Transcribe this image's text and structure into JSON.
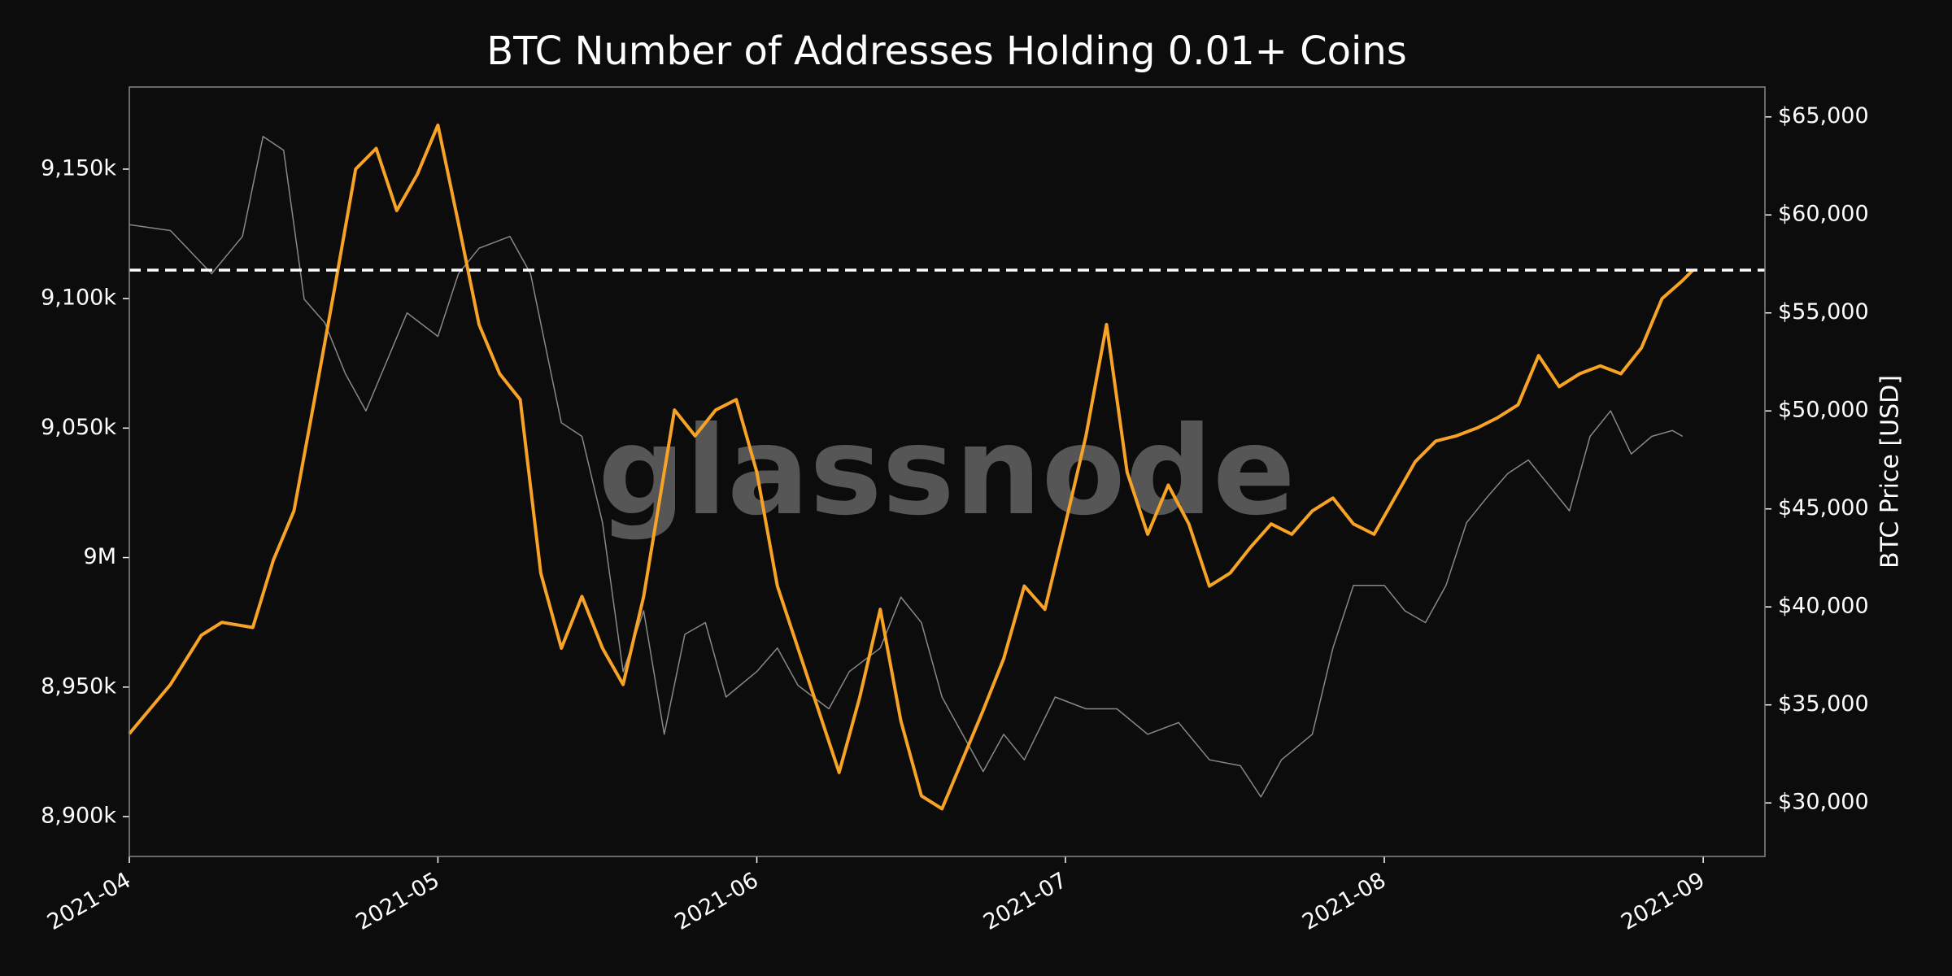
{
  "chart_data": {
    "type": "line",
    "title": "BTC Number of Addresses Holding 0.01+ Coins",
    "y2label": "BTC Price [USD]",
    "watermark": "glassnode",
    "xlim": [
      "2021-04-01",
      "2021-09-07"
    ],
    "xticks": [
      {
        "value": "2021-04-01",
        "label": "2021-04"
      },
      {
        "value": "2021-05-01",
        "label": "2021-05"
      },
      {
        "value": "2021-06-01",
        "label": "2021-06"
      },
      {
        "value": "2021-07-01",
        "label": "2021-07"
      },
      {
        "value": "2021-08-01",
        "label": "2021-08"
      },
      {
        "value": "2021-09-01",
        "label": "2021-09"
      }
    ],
    "ylim": [
      8884600,
      9181700
    ],
    "yticks": [
      {
        "value": 8900000,
        "label": "8,900k"
      },
      {
        "value": 8950000,
        "label": "8,950k"
      },
      {
        "value": 9000000,
        "label": "9M"
      },
      {
        "value": 9050000,
        "label": "9,050k"
      },
      {
        "value": 9100000,
        "label": "9,100k"
      },
      {
        "value": 9150000,
        "label": "9,150k"
      }
    ],
    "y2lim": [
      27268,
      66525
    ],
    "y2ticks": [
      {
        "value": 30000,
        "label": "$30,000"
      },
      {
        "value": 35000,
        "label": "$35,000"
      },
      {
        "value": 40000,
        "label": "$40,000"
      },
      {
        "value": 45000,
        "label": "$45,000"
      },
      {
        "value": 50000,
        "label": "$50,000"
      },
      {
        "value": 55000,
        "label": "$55,000"
      },
      {
        "value": 60000,
        "label": "$60,000"
      },
      {
        "value": 65000,
        "label": "$65,000"
      }
    ],
    "hline": {
      "value": 9111000,
      "color": "#ffffff"
    },
    "series": [
      {
        "color": "#888888",
        "axis": "y2",
        "x": [
          "2021-04-01",
          "2021-04-05",
          "2021-04-09",
          "2021-04-12",
          "2021-04-14",
          "2021-04-16",
          "2021-04-18",
          "2021-04-20",
          "2021-04-22",
          "2021-04-24",
          "2021-04-26",
          "2021-04-28",
          "2021-05-01",
          "2021-05-03",
          "2021-05-05",
          "2021-05-08",
          "2021-05-10",
          "2021-05-12",
          "2021-05-13",
          "2021-05-15",
          "2021-05-17",
          "2021-05-19",
          "2021-05-21",
          "2021-05-23",
          "2021-05-25",
          "2021-05-27",
          "2021-05-29",
          "2021-06-01",
          "2021-06-03",
          "2021-06-05",
          "2021-06-08",
          "2021-06-10",
          "2021-06-13",
          "2021-06-15",
          "2021-06-17",
          "2021-06-19",
          "2021-06-21",
          "2021-06-23",
          "2021-06-25",
          "2021-06-27",
          "2021-06-30",
          "2021-07-03",
          "2021-07-06",
          "2021-07-09",
          "2021-07-12",
          "2021-07-15",
          "2021-07-18",
          "2021-07-20",
          "2021-07-22",
          "2021-07-25",
          "2021-07-27",
          "2021-07-29",
          "2021-08-01",
          "2021-08-03",
          "2021-08-05",
          "2021-08-07",
          "2021-08-09",
          "2021-08-11",
          "2021-08-13",
          "2021-08-15",
          "2021-08-17",
          "2021-08-19",
          "2021-08-21",
          "2021-08-23",
          "2021-08-25",
          "2021-08-27",
          "2021-08-29",
          "2021-08-30"
        ],
        "values": [
          59500,
          59200,
          57000,
          58900,
          64000,
          63300,
          55700,
          54500,
          51900,
          50000,
          52500,
          55000,
          53800,
          57000,
          58300,
          58900,
          57000,
          51900,
          49400,
          48700,
          44300,
          36700,
          39800,
          33500,
          38600,
          39200,
          35400,
          36700,
          37900,
          36000,
          34800,
          36700,
          37900,
          40500,
          39200,
          35400,
          33500,
          31600,
          33500,
          32200,
          35400,
          34800,
          34800,
          33500,
          34100,
          32200,
          31900,
          30300,
          32200,
          33500,
          37900,
          41100,
          41100,
          39800,
          39200,
          41100,
          44300,
          45600,
          46800,
          47500,
          46200,
          44900,
          48700,
          50000,
          47800,
          48700,
          49000,
          48700
        ]
      },
      {
        "color": "#f7a325",
        "axis": "y",
        "x": [
          "2021-04-01",
          "2021-04-05",
          "2021-04-08",
          "2021-04-10",
          "2021-04-13",
          "2021-04-15",
          "2021-04-17",
          "2021-04-19",
          "2021-04-21",
          "2021-04-23",
          "2021-04-25",
          "2021-04-27",
          "2021-04-29",
          "2021-05-01",
          "2021-05-03",
          "2021-05-05",
          "2021-05-07",
          "2021-05-09",
          "2021-05-11",
          "2021-05-13",
          "2021-05-15",
          "2021-05-17",
          "2021-05-19",
          "2021-05-21",
          "2021-05-24",
          "2021-05-26",
          "2021-05-28",
          "2021-05-30",
          "2021-06-01",
          "2021-06-03",
          "2021-06-05",
          "2021-06-07",
          "2021-06-09",
          "2021-06-11",
          "2021-06-13",
          "2021-06-15",
          "2021-06-17",
          "2021-06-19",
          "2021-06-21",
          "2021-06-23",
          "2021-06-25",
          "2021-06-27",
          "2021-06-29",
          "2021-07-01",
          "2021-07-03",
          "2021-07-05",
          "2021-07-07",
          "2021-07-09",
          "2021-07-11",
          "2021-07-13",
          "2021-07-15",
          "2021-07-17",
          "2021-07-19",
          "2021-07-21",
          "2021-07-23",
          "2021-07-25",
          "2021-07-27",
          "2021-07-29",
          "2021-07-31",
          "2021-08-02",
          "2021-08-04",
          "2021-08-06",
          "2021-08-08",
          "2021-08-10",
          "2021-08-12",
          "2021-08-14",
          "2021-08-16",
          "2021-08-18",
          "2021-08-20",
          "2021-08-22",
          "2021-08-24",
          "2021-08-26",
          "2021-08-28",
          "2021-08-30",
          "2021-08-31"
        ],
        "values": [
          8932000,
          8951000,
          8970000,
          8975000,
          8973000,
          8999000,
          9018000,
          9061000,
          9105000,
          9150000,
          9158000,
          9134000,
          9148000,
          9167000,
          9129000,
          9090000,
          9071000,
          9061000,
          8994000,
          8965000,
          8985000,
          8965000,
          8951000,
          8985000,
          9057000,
          9047000,
          9057000,
          9061000,
          9033000,
          8989000,
          8965000,
          8941000,
          8917000,
          8946000,
          8980000,
          8937000,
          8908000,
          8903000,
          8922000,
          8941000,
          8961000,
          8989000,
          8980000,
          9013000,
          9047000,
          9090000,
          9033000,
          9009000,
          9028000,
          9013000,
          8989000,
          8994000,
          9004000,
          9013000,
          9009000,
          9018000,
          9023000,
          9013000,
          9009000,
          9023000,
          9037000,
          9045000,
          9047000,
          9050000,
          9054000,
          9059000,
          9078000,
          9066000,
          9071000,
          9074000,
          9071000,
          9081000,
          9100000,
          9107000,
          9111000
        ]
      }
    ]
  }
}
